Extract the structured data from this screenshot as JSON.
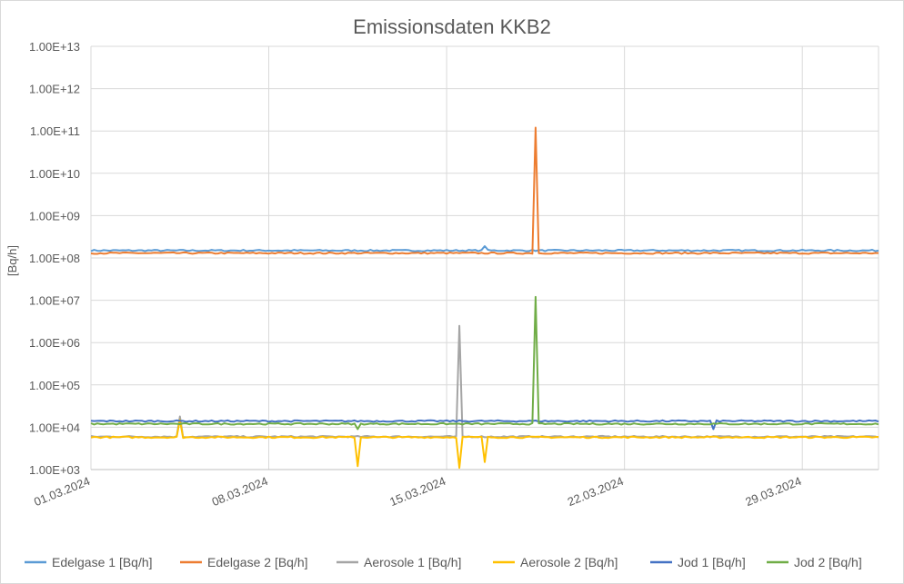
{
  "chart_data": {
    "type": "line",
    "title": "Emissionsdaten KKB2",
    "xlabel": "",
    "ylabel": "[Bq/h]",
    "yscale": "log",
    "ylim": [
      1000,
      10000000000000
    ],
    "xlim": [
      "01.03.2024",
      "01.04.2024"
    ],
    "grid": true,
    "legend_position": "bottom",
    "y_tick_labels": [
      "1.00E+03",
      "1.00E+04",
      "1.00E+05",
      "1.00E+06",
      "1.00E+07",
      "1.00E+08",
      "1.00E+09",
      "1.00E+10",
      "1.00E+11",
      "1.00E+12",
      "1.00E+13"
    ],
    "x_tick_labels": [
      "01.03.2024",
      "08.03.2024",
      "15.03.2024",
      "22.03.2024",
      "29.03.2024"
    ],
    "series": [
      {
        "name": "Edelgase 1 [Bq/h]",
        "color": "#5B9BD5",
        "baseline": 150000000,
        "points": [
          [
            "01.03.2024",
            150000000
          ],
          [
            "14.03.2024",
            140000000
          ],
          [
            "15.03.2024",
            145000000
          ],
          [
            "16.03.2024",
            190000000
          ],
          [
            "01.04.2024",
            150000000
          ]
        ]
      },
      {
        "name": "Edelgase 2 [Bq/h]",
        "color": "#ED7D31",
        "baseline": 130000000,
        "points": [
          [
            "01.03.2024",
            130000000
          ],
          [
            "13.03.2024",
            115000000
          ],
          [
            "15.03.2024",
            120000000
          ],
          [
            "18.03.2024",
            120000000000
          ],
          [
            "18.03.2024",
            135000000
          ],
          [
            "21.03.2024",
            115000000
          ],
          [
            "01.04.2024",
            130000000
          ]
        ]
      },
      {
        "name": "Aerosole 1 [Bq/h]",
        "color": "#A5A5A5",
        "baseline": 6000,
        "points": [
          [
            "01.03.2024",
            6000
          ],
          [
            "04.03.2024",
            18000
          ],
          [
            "15.03.2024",
            2500000
          ],
          [
            "01.04.2024",
            6000
          ]
        ]
      },
      {
        "name": "Aerosole 2 [Bq/h]",
        "color": "#FFC000",
        "baseline": 5800,
        "points": [
          [
            "01.03.2024",
            5800
          ],
          [
            "04.03.2024",
            15000
          ],
          [
            "11.03.2024",
            1200
          ],
          [
            "15.03.2024",
            1100
          ],
          [
            "16.03.2024",
            1500
          ],
          [
            "01.04.2024",
            5800
          ]
        ]
      },
      {
        "name": "Jod 1 [Bq/h]",
        "color": "#4472C4",
        "baseline": 14000,
        "points": [
          [
            "01.03.2024",
            14000
          ],
          [
            "16.03.2024",
            16000
          ],
          [
            "25.03.2024",
            9000
          ],
          [
            "01.04.2024",
            14000
          ]
        ]
      },
      {
        "name": "Jod 2 [Bq/h]",
        "color": "#70AD47",
        "baseline": 12000,
        "points": [
          [
            "01.03.2024",
            12000
          ],
          [
            "11.03.2024",
            9000
          ],
          [
            "18.03.2024",
            12000000
          ],
          [
            "01.04.2024",
            12000
          ]
        ]
      }
    ]
  }
}
